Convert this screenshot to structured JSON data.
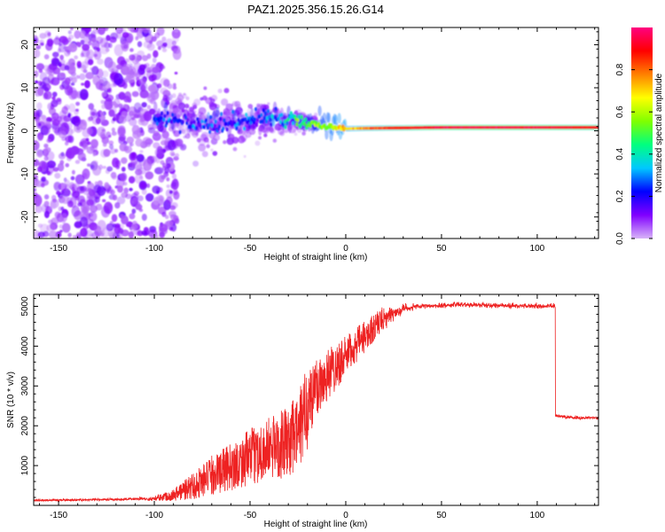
{
  "title": "PAZ1.2025.356.15.26.G14",
  "chart_data": [
    {
      "type": "heatmap",
      "panel": "top",
      "xlabel": "Height of straight line (km)",
      "ylabel": "Frequency (Hz)",
      "xlim": [
        -163,
        132
      ],
      "ylim": [
        -25,
        24
      ],
      "xticks": [
        -150,
        -100,
        -50,
        0,
        50,
        100
      ],
      "yticks": [
        -20,
        -10,
        0,
        10,
        20
      ],
      "colorbar": {
        "label": "Normalized spectral amplitude",
        "range": [
          0,
          1
        ],
        "ticks": [
          0.0,
          0.2,
          0.4,
          0.6,
          0.8
        ],
        "colormap": [
          "#d8b4f8",
          "#8000ff",
          "#0000ff",
          "#00c8ff",
          "#00ff80",
          "#80ff00",
          "#ffff00",
          "#ff8000",
          "#ff0000",
          "#ff0080"
        ]
      },
      "main_track": [
        {
          "x": -100,
          "f": 3.0,
          "amp": 0.25
        },
        {
          "x": -80,
          "f": 1.5,
          "amp": 0.2
        },
        {
          "x": -60,
          "f": 2.0,
          "amp": 0.25
        },
        {
          "x": -40,
          "f": 3.0,
          "amp": 0.25
        },
        {
          "x": -25,
          "f": 2.5,
          "amp": 0.45
        },
        {
          "x": -10,
          "f": 1.0,
          "amp": 0.6
        },
        {
          "x": 0,
          "f": 0.5,
          "amp": 0.7
        },
        {
          "x": 10,
          "f": 0.6,
          "amp": 0.8
        },
        {
          "x": 50,
          "f": 0.8,
          "amp": 0.95
        },
        {
          "x": 100,
          "f": 0.8,
          "amp": 0.95
        },
        {
          "x": 132,
          "f": 0.8,
          "amp": 0.9
        }
      ]
    },
    {
      "type": "line",
      "panel": "bottom",
      "xlabel": "Height of straight line (km)",
      "ylabel": "SNR (10 * v/v)",
      "xlim": [
        -163,
        132
      ],
      "ylim": [
        0,
        5300
      ],
      "xticks": [
        -150,
        -100,
        -50,
        0,
        50,
        100
      ],
      "yticks": [
        1000,
        2000,
        3000,
        4000,
        5000
      ],
      "color": "#ee2222",
      "series": [
        {
          "name": "SNR",
          "x": [
            -163,
            -140,
            -120,
            -100,
            -90,
            -80,
            -70,
            -60,
            -50,
            -40,
            -30,
            -25,
            -20,
            -15,
            -10,
            0,
            10,
            20,
            30,
            40,
            50,
            60,
            80,
            100,
            109,
            110,
            120,
            132
          ],
          "y": [
            130,
            140,
            150,
            170,
            250,
            450,
            700,
            900,
            1150,
            1350,
            1500,
            1700,
            2400,
            2900,
            3200,
            3700,
            4200,
            4700,
            4950,
            5000,
            5020,
            5050,
            5020,
            5000,
            5000,
            2250,
            2200,
            2200
          ],
          "noise": [
            40,
            40,
            40,
            60,
            150,
            350,
            500,
            600,
            700,
            800,
            900,
            1000,
            1100,
            800,
            700,
            500,
            400,
            300,
            150,
            80,
            80,
            80,
            70,
            80,
            80,
            50,
            60,
            50
          ]
        }
      ]
    }
  ]
}
